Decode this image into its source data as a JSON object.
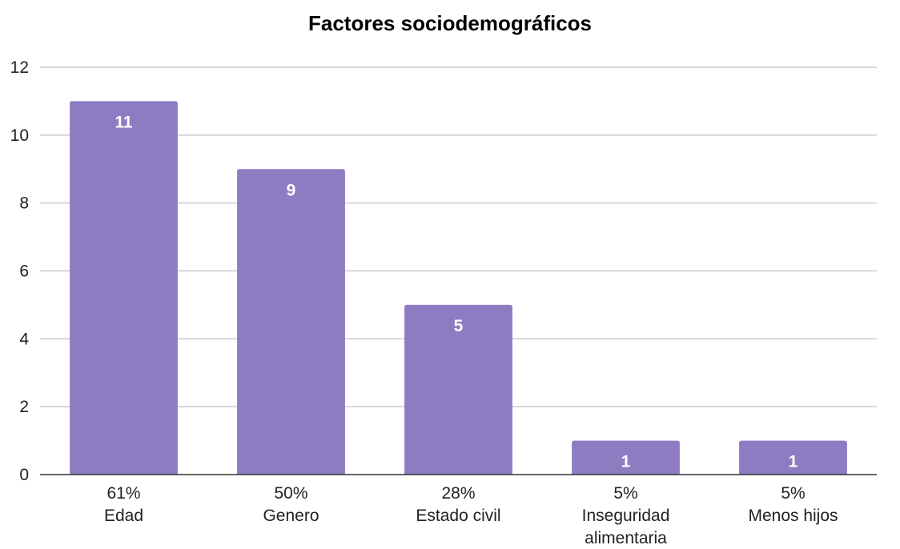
{
  "chart_data": {
    "type": "bar",
    "title": "Factores sociodemográficos",
    "xlabel": "",
    "ylabel": "",
    "ylim": [
      0,
      12
    ],
    "yticks": [
      0,
      2,
      4,
      6,
      8,
      10,
      12
    ],
    "grid": true,
    "legend": "none",
    "bar_color": "#8e7cc3",
    "categories": [
      [
        "61%",
        "Edad"
      ],
      [
        "50%",
        "Genero"
      ],
      [
        "28%",
        "Estado civil"
      ],
      [
        "5%",
        "Inseguridad",
        "alimentaria"
      ],
      [
        "5%",
        "Menos hijos"
      ]
    ],
    "values": [
      11,
      9,
      5,
      1,
      1
    ],
    "data_labels": [
      "11",
      "9",
      "5",
      "1",
      "1"
    ]
  }
}
